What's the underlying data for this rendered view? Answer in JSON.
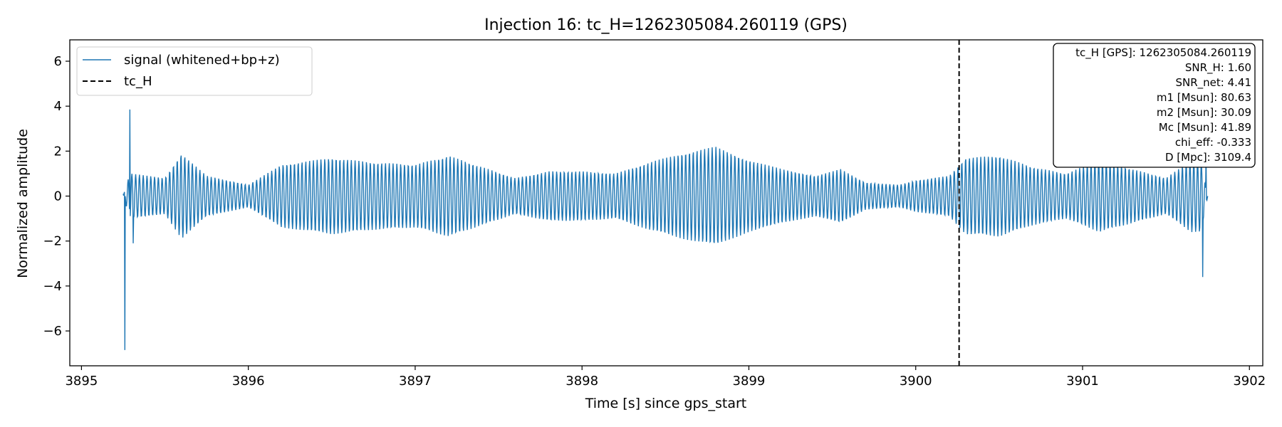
{
  "chart_data": {
    "type": "line",
    "title": "Injection 16: tc_H=1262305084.260119 (GPS)",
    "xlabel": "Time [s] since gps_start",
    "ylabel": "Normalized amplitude",
    "xlim": [
      3894.93,
      3902.08
    ],
    "ylim": [
      -7.55,
      6.95
    ],
    "xticks": [
      3895,
      3896,
      3897,
      3898,
      3899,
      3900,
      3901,
      3902
    ],
    "yticks": [
      -6,
      -4,
      -2,
      0,
      2,
      4,
      6
    ],
    "ytick_labels": [
      "−6",
      "−4",
      "−2",
      "0",
      "2",
      "4",
      "6"
    ],
    "grid": false,
    "legend_position": "upper-left",
    "series": [
      {
        "name": "signal (whitened+bp+z)",
        "color": "#1f77b4",
        "x_start": 3895.25,
        "x_end": 3901.75,
        "envelope": [
          [
            3895.3,
            1.0
          ],
          [
            3895.5,
            0.8
          ],
          [
            3895.6,
            1.9
          ],
          [
            3895.75,
            0.9
          ],
          [
            3896.0,
            0.5
          ],
          [
            3896.2,
            1.4
          ],
          [
            3896.5,
            1.7
          ],
          [
            3896.75,
            1.5
          ],
          [
            3897.0,
            1.4
          ],
          [
            3897.2,
            1.8
          ],
          [
            3897.4,
            1.3
          ],
          [
            3897.6,
            0.8
          ],
          [
            3897.8,
            1.1
          ],
          [
            3898.0,
            1.1
          ],
          [
            3898.2,
            1.0
          ],
          [
            3898.4,
            1.5
          ],
          [
            3898.6,
            1.9
          ],
          [
            3898.8,
            2.2
          ],
          [
            3899.0,
            1.6
          ],
          [
            3899.2,
            1.2
          ],
          [
            3899.4,
            0.9
          ],
          [
            3899.55,
            1.2
          ],
          [
            3899.7,
            0.6
          ],
          [
            3899.9,
            0.5
          ],
          [
            3900.0,
            0.7
          ],
          [
            3900.2,
            0.9
          ],
          [
            3900.3,
            1.7
          ],
          [
            3900.5,
            1.8
          ],
          [
            3900.7,
            1.3
          ],
          [
            3900.9,
            1.0
          ],
          [
            3901.1,
            1.6
          ],
          [
            3901.3,
            1.2
          ],
          [
            3901.5,
            0.8
          ],
          [
            3901.65,
            1.6
          ]
        ],
        "carrier_hz": 44,
        "transients": [
          {
            "x": 3895.26,
            "y": -6.85
          },
          {
            "x": 3895.29,
            "y": 3.85
          },
          {
            "x": 3895.31,
            "y": -2.1
          },
          {
            "x": 3901.72,
            "y": -3.6
          },
          {
            "x": 3901.74,
            "y": 1.9
          }
        ]
      },
      {
        "name": "tc_H",
        "color": "#000000",
        "style": "dashed",
        "x": 3900.26
      }
    ],
    "annotation": [
      "tc_H [GPS]: 1262305084.260119",
      "SNR_H: 1.60",
      "SNR_net: 4.41",
      "m1 [Msun]: 80.63",
      "m2 [Msun]: 30.09",
      "Mc [Msun]: 41.89",
      "chi_eff: -0.333",
      "D [Mpc]: 3109.4"
    ]
  }
}
